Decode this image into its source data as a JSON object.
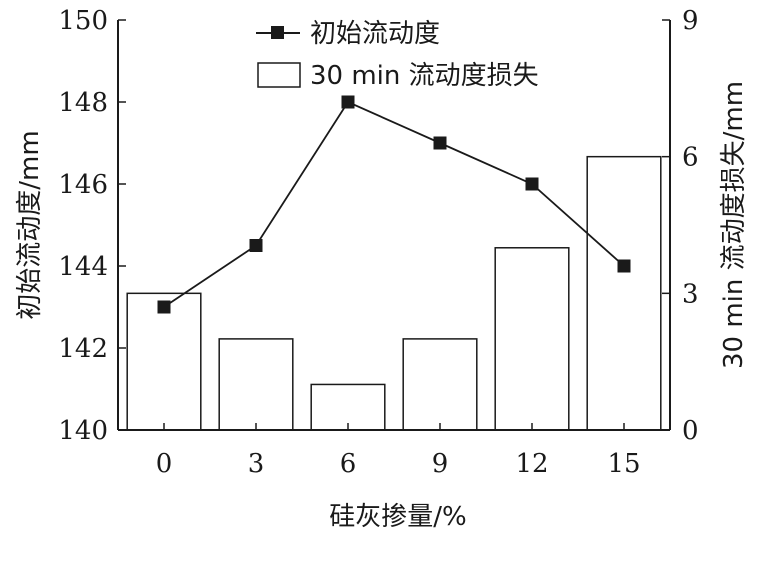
{
  "chart_data": {
    "type": "bar+line",
    "categories": [
      "0",
      "3",
      "6",
      "9",
      "12",
      "15"
    ],
    "xlabel": "硅灰掺量/%",
    "ylabel_left": "初始流动度/mm",
    "ylabel_right": "30 min 流动度损失/mm",
    "ylim_left": [
      140,
      150
    ],
    "yticks_left": [
      140,
      142,
      144,
      146,
      148,
      150
    ],
    "ylim_right": [
      0,
      9
    ],
    "yticks_right": [
      0,
      3,
      6,
      9
    ],
    "grid": false,
    "legend_position": "top-center",
    "series": [
      {
        "name": "初始流动度",
        "type": "line",
        "axis": "left",
        "marker": "square",
        "color": "#1a1a1a",
        "values": [
          143,
          144.5,
          148,
          147,
          146,
          144
        ]
      },
      {
        "name": "30 min 流动度损失",
        "type": "bar",
        "axis": "right",
        "fill": "#ffffff",
        "stroke": "#1a1a1a",
        "values": [
          3,
          2,
          1,
          2,
          4,
          6
        ]
      }
    ]
  }
}
